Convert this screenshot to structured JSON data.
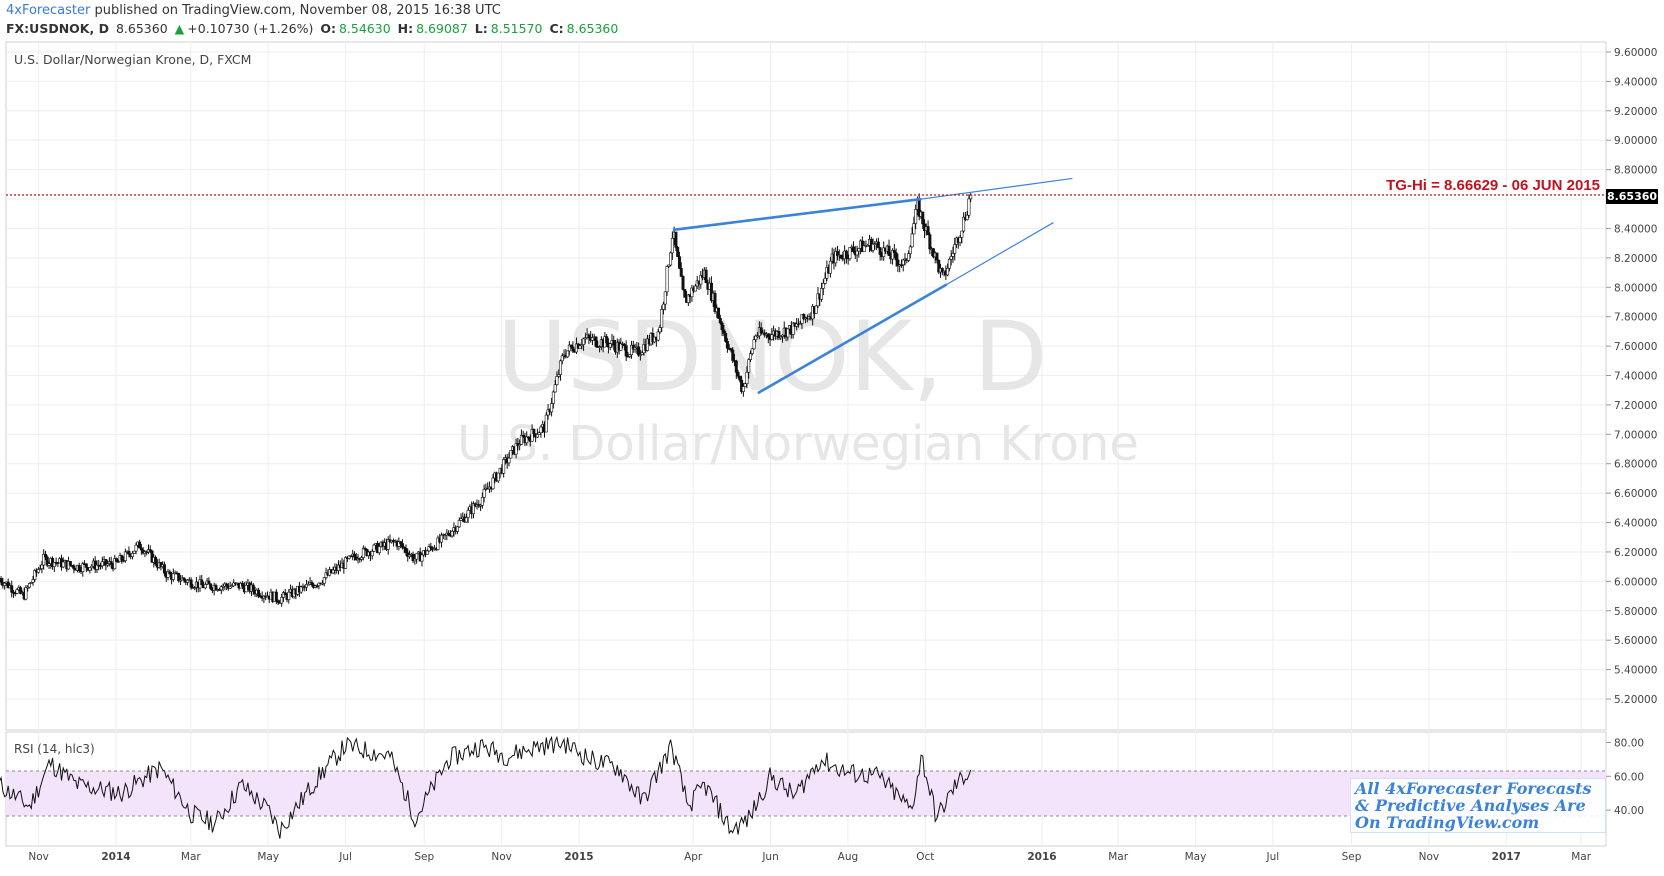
{
  "header": {
    "publisher": "4xForecaster",
    "published_text": "published on TradingView.com, November 08, 2015 16:38 UTC",
    "symbol": "FX:USDNOK, D",
    "last": "8.65360",
    "change_arrow": "▲",
    "change": "+0.10730 (+1.26%)",
    "o_label": "O:",
    "o_value": "8.54630",
    "h_label": "H:",
    "h_value": "8.69087",
    "l_label": "L:",
    "l_value": "8.51570",
    "c_label": "C:",
    "c_value": "8.65360"
  },
  "chart": {
    "title": "U.S. Dollar/Norwegian Krone, D, FXCM",
    "watermark_symbol": "USDNOK, D",
    "watermark_name": "U.S. Dollar/Norwegian Krone",
    "price_label": "8.65360",
    "tg_label": "TG-Hi = 8.66629 - 06 JUN 2015",
    "rsi_label": "RSI (14, hlc3)",
    "ad_line1": "All 4xForecaster Forecasts",
    "ad_line2": "& Predictive Analyses Are",
    "ad_line3": "On TradingView.com"
  },
  "colors": {
    "accent": "#3b7bd4",
    "up": "#18a23a",
    "tg": "#c1121f",
    "trendline": "#3b82d9",
    "rsi_band": "#f3e3fb"
  },
  "chart_data": {
    "type": "candlestick",
    "price_axis_ticks": [
      "9.60000",
      "9.40000",
      "9.20000",
      "9.00000",
      "8.80000",
      "8.60000",
      "8.40000",
      "8.20000",
      "8.00000",
      "7.80000",
      "7.60000",
      "7.40000",
      "7.20000",
      "7.00000",
      "6.80000",
      "6.60000",
      "6.40000",
      "6.20000",
      "6.00000",
      "5.80000",
      "5.60000",
      "5.40000",
      "5.20000"
    ],
    "rsi_axis_ticks": [
      "80.00",
      "60.00",
      "40.00"
    ],
    "x_ticks": [
      "Nov",
      "2014",
      "Mar",
      "May",
      "Jul",
      "Sep",
      "Nov",
      "2015",
      "Apr",
      "Jun",
      "Aug",
      "Oct",
      "2016",
      "Mar",
      "May",
      "Jul",
      "Sep",
      "Nov",
      "2017",
      "Mar"
    ],
    "x_tick_dates": [
      "2013-11-01",
      "2014-01-01",
      "2014-03-01",
      "2014-05-01",
      "2014-07-01",
      "2014-09-01",
      "2014-11-01",
      "2015-01-01",
      "2015-04-01",
      "2015-06-01",
      "2015-08-01",
      "2015-10-01",
      "2016-01-01",
      "2016-03-01",
      "2016-05-01",
      "2016-07-01",
      "2016-09-01",
      "2016-11-01",
      "2017-01-01",
      "2017-03-01"
    ],
    "ylim": [
      5.05,
      9.7
    ],
    "rsi_ylim": [
      20,
      85
    ],
    "rsi_band": [
      30,
      70
    ],
    "tg_level": 8.66629,
    "last_price": 8.6536,
    "price_path": [
      [
        "2013-10-01",
        6.02
      ],
      [
        "2013-10-20",
        5.9
      ],
      [
        "2013-11-05",
        6.15
      ],
      [
        "2013-12-01",
        6.1
      ],
      [
        "2014-01-01",
        6.12
      ],
      [
        "2014-01-20",
        6.25
      ],
      [
        "2014-02-10",
        6.05
      ],
      [
        "2014-03-10",
        5.97
      ],
      [
        "2014-04-10",
        5.97
      ],
      [
        "2014-05-10",
        5.88
      ],
      [
        "2014-06-10",
        6.0
      ],
      [
        "2014-07-10",
        6.18
      ],
      [
        "2014-08-10",
        6.27
      ],
      [
        "2014-08-25",
        6.15
      ],
      [
        "2014-09-15",
        6.28
      ],
      [
        "2014-10-15",
        6.55
      ],
      [
        "2014-11-15",
        6.95
      ],
      [
        "2014-12-05",
        7.05
      ],
      [
        "2014-12-20",
        7.55
      ],
      [
        "2015-01-05",
        7.65
      ],
      [
        "2015-01-25",
        7.62
      ],
      [
        "2015-02-15",
        7.55
      ],
      [
        "2015-03-05",
        7.7
      ],
      [
        "2015-03-16",
        8.38
      ],
      [
        "2015-03-25",
        7.9
      ],
      [
        "2015-04-10",
        8.1
      ],
      [
        "2015-04-25",
        7.7
      ],
      [
        "2015-05-10",
        7.3
      ],
      [
        "2015-05-20",
        7.68
      ],
      [
        "2015-06-01",
        7.68
      ],
      [
        "2015-06-20",
        7.72
      ],
      [
        "2015-07-05",
        7.85
      ],
      [
        "2015-07-20",
        8.2
      ],
      [
        "2015-08-20",
        8.3
      ],
      [
        "2015-09-15",
        8.15
      ],
      [
        "2015-09-25",
        8.55
      ],
      [
        "2015-10-05",
        8.3
      ],
      [
        "2015-10-15",
        8.05
      ],
      [
        "2015-10-25",
        8.3
      ],
      [
        "2015-11-02",
        8.5
      ],
      [
        "2015-11-06",
        8.65
      ]
    ],
    "rsi_path": [
      [
        "2013-10-01",
        55
      ],
      [
        "2013-10-25",
        42
      ],
      [
        "2013-11-10",
        68
      ],
      [
        "2013-12-01",
        55
      ],
      [
        "2014-01-05",
        50
      ],
      [
        "2014-02-05",
        65
      ],
      [
        "2014-03-01",
        38
      ],
      [
        "2014-03-20",
        32
      ],
      [
        "2014-04-10",
        55
      ],
      [
        "2014-05-01",
        40
      ],
      [
        "2014-05-10",
        28
      ],
      [
        "2014-06-10",
        60
      ],
      [
        "2014-07-01",
        78
      ],
      [
        "2014-08-05",
        72
      ],
      [
        "2014-08-25",
        35
      ],
      [
        "2014-09-20",
        70
      ],
      [
        "2014-10-15",
        78
      ],
      [
        "2014-11-05",
        72
      ],
      [
        "2014-12-01",
        78
      ],
      [
        "2014-12-20",
        80
      ],
      [
        "2015-01-10",
        70
      ],
      [
        "2015-02-01",
        65
      ],
      [
        "2015-02-20",
        45
      ],
      [
        "2015-03-15",
        78
      ],
      [
        "2015-03-28",
        42
      ],
      [
        "2015-04-10",
        55
      ],
      [
        "2015-05-01",
        28
      ],
      [
        "2015-05-15",
        35
      ],
      [
        "2015-06-01",
        60
      ],
      [
        "2015-06-20",
        48
      ],
      [
        "2015-07-10",
        70
      ],
      [
        "2015-08-01",
        62
      ],
      [
        "2015-08-25",
        60
      ],
      [
        "2015-09-20",
        40
      ],
      [
        "2015-09-28",
        72
      ],
      [
        "2015-10-10",
        35
      ],
      [
        "2015-10-25",
        55
      ],
      [
        "2015-11-06",
        64
      ]
    ],
    "trendlines": [
      {
        "from": [
          "2015-03-16",
          8.39
        ],
        "to": [
          "2015-09-28",
          8.6
        ],
        "extend_to": [
          "2015-11-06",
          8.65
        ]
      },
      {
        "from": [
          "2015-09-28",
          8.6
        ],
        "to": [
          "2016-01-25",
          8.74
        ],
        "thin": true
      },
      {
        "from": [
          "2015-05-22",
          7.28
        ],
        "to": [
          "2015-10-18",
          8.02
        ]
      },
      {
        "from": [
          "2015-10-18",
          8.02
        ],
        "to": [
          "2016-01-10",
          8.44
        ],
        "thin": true
      }
    ]
  }
}
